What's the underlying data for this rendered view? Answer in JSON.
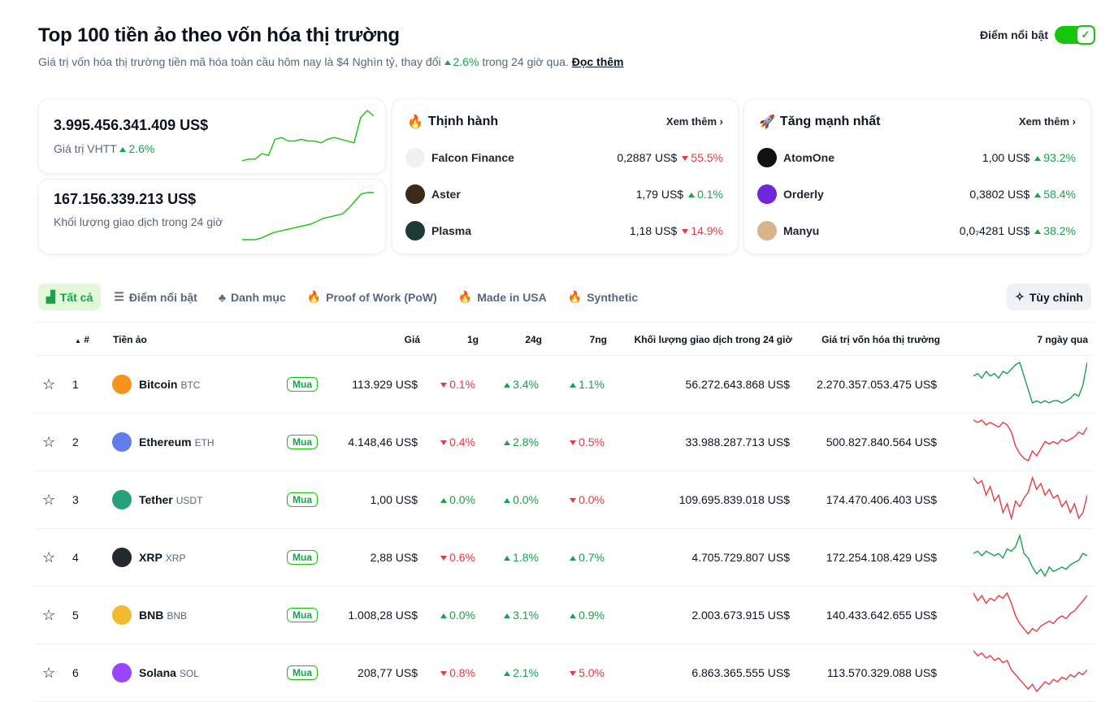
{
  "header": {
    "title": "Top 100 tiền ảo theo vốn hóa thị trường",
    "subtitle_pre": "Giá trị vốn hóa thị trường tiền mã hóa toàn cầu hôm nay là $4 Nghìn tỷ, thay đổi",
    "subtitle_change": "2.6%",
    "subtitle_post": "trong 24 giờ qua.",
    "read_more": "Đọc thêm",
    "toggle_label": "Điểm nổi bật",
    "toggle_on": true
  },
  "stats": [
    {
      "value": "3.995.456.341.409 US$",
      "label": "Giá trị VHTT",
      "change": "2.6%",
      "spark": [
        2,
        3,
        3,
        6,
        5,
        14,
        15,
        13,
        13,
        14,
        13,
        13,
        12,
        14,
        15,
        14,
        13,
        12,
        26,
        30,
        27
      ]
    },
    {
      "value": "167.156.339.213 US$",
      "label": "Khối lượng giao dịch trong 24 giờ",
      "spark": [
        0,
        0,
        0,
        1,
        3,
        5,
        6,
        7,
        8,
        9,
        10,
        11,
        13,
        15,
        16,
        17,
        18,
        22,
        27,
        32,
        33,
        33
      ]
    }
  ],
  "trending": {
    "title": "Thịnh hành",
    "more": "Xem thêm",
    "items": [
      {
        "name": "Falcon Finance",
        "price": "0,2887 US$",
        "change": "55.5%",
        "dir": "down",
        "color": "#f1f1f1"
      },
      {
        "name": "Aster",
        "price": "1,79 US$",
        "change": "0.1%",
        "dir": "up",
        "color": "#3b2a1a"
      },
      {
        "name": "Plasma",
        "price": "1,18 US$",
        "change": "14.9%",
        "dir": "down",
        "color": "#1f3a34"
      }
    ]
  },
  "gainers": {
    "title": "Tăng mạnh nhất",
    "more": "Xem thêm",
    "items": [
      {
        "name": "AtomOne",
        "price": "1,00 US$",
        "change": "93.2%",
        "dir": "up",
        "color": "#111111"
      },
      {
        "name": "Orderly",
        "price": "0,3802 US$",
        "change": "58.4%",
        "dir": "up",
        "color": "#6d28d9"
      },
      {
        "name": "Manyu",
        "price": "0,0₇4281 US$",
        "change": "38.2%",
        "dir": "up",
        "color": "#d8b48a"
      }
    ]
  },
  "tabs": [
    "Tất cả",
    "Điểm nổi bật",
    "Danh mục",
    "Proof of Work (PoW)",
    "Made in USA",
    "Synthetic"
  ],
  "customize": "Tùy chỉnh",
  "columns": {
    "rank": "#",
    "coin": "Tiền ảo",
    "price": "Giá",
    "h1": "1g",
    "h24": "24g",
    "d7": "7ng",
    "volume": "Khối lượng giao dịch trong 24 giờ",
    "mcap": "Giá trị vốn hóa thị trường",
    "chart": "7 ngày qua"
  },
  "buy_label": "Mua",
  "rows": [
    {
      "rank": "1",
      "name": "Bitcoin",
      "symbol": "BTC",
      "price": "113.929 US$",
      "h1": "0.1%",
      "h1d": "down",
      "h24": "3.4%",
      "h24d": "up",
      "d7": "1.1%",
      "d7d": "up",
      "volume": "56.272.643.868 US$",
      "mcap": "2.270.357.053.475 US$",
      "color": "#f7931a",
      "trend": "up",
      "spark": [
        14,
        15,
        13,
        16,
        14,
        15,
        13,
        16,
        15,
        17,
        19,
        20,
        14,
        8,
        2,
        3,
        2,
        3,
        2,
        3,
        3,
        2,
        3,
        4,
        6,
        5,
        10,
        20
      ]
    },
    {
      "rank": "2",
      "name": "Ethereum",
      "symbol": "ETH",
      "price": "4.148,46 US$",
      "h1": "0.4%",
      "h1d": "down",
      "h24": "2.8%",
      "h24d": "up",
      "d7": "0.5%",
      "d7d": "down",
      "volume": "33.988.287.713 US$",
      "mcap": "500.827.840.564 US$",
      "color": "#627eea",
      "trend": "down",
      "spark": [
        19,
        18,
        19,
        17,
        18,
        17,
        16,
        18,
        17,
        14,
        8,
        5,
        3,
        2,
        6,
        4,
        7,
        10,
        9,
        10,
        9,
        11,
        10,
        11,
        12,
        14,
        13,
        16
      ]
    },
    {
      "rank": "3",
      "name": "Tether",
      "symbol": "USDT",
      "price": "1,00 US$",
      "h1": "0.0%",
      "h1d": "up",
      "h24": "0.0%",
      "h24d": "up",
      "d7": "0.0%",
      "d7d": "down",
      "volume": "109.695.839.018 US$",
      "mcap": "174.470.406.403 US$",
      "color": "#26a17b",
      "trend": "down",
      "spark": [
        18,
        16,
        17,
        12,
        15,
        10,
        12,
        6,
        9,
        4,
        10,
        8,
        11,
        13,
        18,
        14,
        16,
        12,
        14,
        11,
        12,
        8,
        10,
        6,
        9,
        4,
        6,
        12
      ]
    },
    {
      "rank": "4",
      "name": "XRP",
      "symbol": "XRP",
      "price": "2,88 US$",
      "h1": "0.6%",
      "h1d": "down",
      "h24": "1.8%",
      "h24d": "up",
      "d7": "0.7%",
      "d7d": "up",
      "volume": "4.705.729.807 US$",
      "mcap": "172.254.108.429 US$",
      "color": "#23292f",
      "trend": "up",
      "spark": [
        12,
        13,
        11,
        13,
        12,
        11,
        12,
        10,
        14,
        13,
        15,
        20,
        12,
        10,
        6,
        3,
        5,
        2,
        6,
        4,
        5,
        6,
        5,
        7,
        8,
        9,
        12,
        11
      ]
    },
    {
      "rank": "5",
      "name": "BNB",
      "symbol": "BNB",
      "price": "1.008,28 US$",
      "h1": "0.0%",
      "h1d": "up",
      "h24": "3.1%",
      "h24d": "up",
      "d7": "0.9%",
      "d7d": "up",
      "volume": "2.003.673.915 US$",
      "mcap": "140.433.642.655 US$",
      "color": "#f3ba2f",
      "trend": "down",
      "spark": [
        18,
        15,
        17,
        14,
        16,
        15,
        17,
        16,
        18,
        14,
        9,
        6,
        4,
        2,
        4,
        3,
        5,
        6,
        7,
        6,
        8,
        9,
        8,
        10,
        11,
        13,
        15,
        17
      ]
    },
    {
      "rank": "6",
      "name": "Solana",
      "symbol": "SOL",
      "price": "208,77 US$",
      "h1": "0.8%",
      "h1d": "down",
      "h24": "2.1%",
      "h24d": "up",
      "d7": "5.0%",
      "d7d": "down",
      "volume": "6.863.365.555 US$",
      "mcap": "113.570.329.088 US$",
      "color": "#9945ff",
      "trend": "down",
      "spark": [
        18,
        16,
        17,
        15,
        16,
        14,
        15,
        13,
        14,
        10,
        8,
        6,
        4,
        2,
        4,
        1,
        3,
        5,
        4,
        6,
        5,
        7,
        6,
        8,
        7,
        9,
        8,
        10
      ]
    }
  ],
  "colors": {
    "up": "#16a34a",
    "down": "#ea3943",
    "accent": "#16c60c"
  }
}
